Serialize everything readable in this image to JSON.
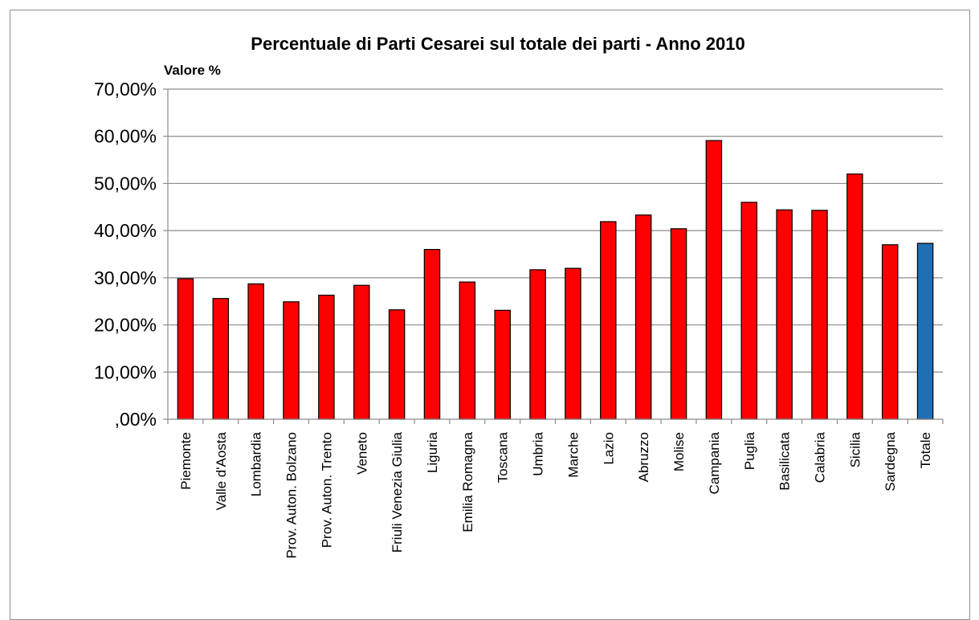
{
  "chart_data": {
    "type": "bar",
    "title": "Percentuale di Parti Cesarei sul totale dei parti - Anno 2010",
    "ylabel": "Valore %",
    "xlabel": "",
    "ylim": [
      0,
      70
    ],
    "yticks": [
      0,
      10,
      20,
      30,
      40,
      50,
      60,
      70
    ],
    "ytick_labels": [
      ",00%",
      "10,00%",
      "20,00%",
      "30,00%",
      "40,00%",
      "50,00%",
      "60,00%",
      "70,00%"
    ],
    "grid": "horizontal",
    "legend": "none",
    "categories": [
      "Piemonte",
      "Valle d'Aosta",
      "Lombardia",
      "Prov. Auton. Bolzano",
      "Prov. Auton. Trento",
      "Veneto",
      "Friuli Venezia Giulia",
      "Liguria",
      "Emilia Romagna",
      "Toscana",
      "Umbria",
      "Marche",
      "Lazio",
      "Abruzzo",
      "Molise",
      "Campania",
      "Puglia",
      "Basilicata",
      "Calabria",
      "Sicilia",
      "Sardegna",
      "Totale"
    ],
    "values": [
      29.8,
      25.6,
      28.7,
      24.9,
      26.3,
      28.4,
      23.2,
      36.0,
      29.1,
      23.1,
      31.7,
      32.0,
      41.9,
      43.3,
      40.4,
      59.1,
      46.0,
      44.4,
      44.3,
      52.0,
      37.0,
      37.3
    ],
    "colors": {
      "bar": "#ff0000",
      "highlight": "#1f6fb5",
      "highlight_category": "Totale",
      "outline": "#000000",
      "grid": "#8c8c8c"
    }
  }
}
